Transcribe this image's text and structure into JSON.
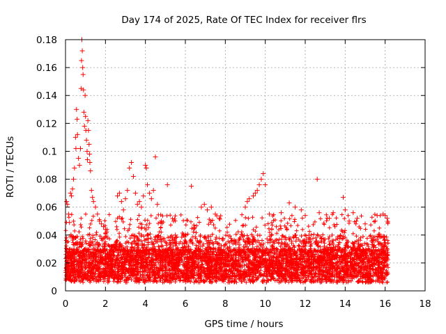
{
  "chart_data": {
    "type": "scatter",
    "title": "Day 174 of 2025, Rate Of TEC Index for receiver flrs",
    "xlabel": "GPS time / hours",
    "ylabel": "ROTI / TECUs",
    "xlim": [
      0,
      18
    ],
    "ylim": [
      0,
      0.18
    ],
    "x_ticks": [
      "0",
      "2",
      "4",
      "6",
      "8",
      "10",
      "12",
      "14",
      "16",
      "18"
    ],
    "y_ticks": [
      "0",
      "0.02",
      "0.04",
      "0.06",
      "0.08",
      "0.1",
      "0.12",
      "0.14",
      "0.16",
      "0.18"
    ],
    "grid": true,
    "marker": "+",
    "color": "#ff0000",
    "series": [
      {
        "name": "ROTI",
        "points": [
          [
            0.05,
            0.064
          ],
          [
            0.1,
            0.062
          ],
          [
            0.15,
            0.055
          ],
          [
            0.2,
            0.049
          ],
          [
            0.25,
            0.07
          ],
          [
            0.3,
            0.068
          ],
          [
            0.35,
            0.073
          ],
          [
            0.4,
            0.08
          ],
          [
            0.45,
            0.088
          ],
          [
            0.5,
            0.11
          ],
          [
            0.52,
            0.102
          ],
          [
            0.55,
            0.13
          ],
          [
            0.58,
            0.123
          ],
          [
            0.6,
            0.112
          ],
          [
            0.65,
            0.095
          ],
          [
            0.7,
            0.09
          ],
          [
            0.75,
            0.102
          ],
          [
            0.78,
            0.145
          ],
          [
            0.8,
            0.165
          ],
          [
            0.82,
            0.18
          ],
          [
            0.84,
            0.172
          ],
          [
            0.86,
            0.16
          ],
          [
            0.88,
            0.155
          ],
          [
            0.9,
            0.144
          ],
          [
            0.92,
            0.128
          ],
          [
            0.95,
            0.118
          ],
          [
            0.98,
            0.14
          ],
          [
            1.0,
            0.125
          ],
          [
            1.02,
            0.115
          ],
          [
            1.05,
            0.108
          ],
          [
            1.08,
            0.1
          ],
          [
            1.1,
            0.094
          ],
          [
            1.12,
            0.122
          ],
          [
            1.15,
            0.115
          ],
          [
            1.18,
            0.105
          ],
          [
            1.2,
            0.098
          ],
          [
            1.22,
            0.092
          ],
          [
            1.25,
            0.086
          ],
          [
            1.3,
            0.072
          ],
          [
            1.35,
            0.067
          ],
          [
            1.4,
            0.064
          ],
          [
            1.5,
            0.06
          ],
          [
            1.6,
            0.055
          ],
          [
            1.7,
            0.05
          ],
          [
            1.8,
            0.048
          ],
          [
            1.9,
            0.046
          ],
          [
            2.0,
            0.044
          ],
          [
            2.6,
            0.068
          ],
          [
            2.7,
            0.07
          ],
          [
            2.8,
            0.064
          ],
          [
            2.9,
            0.058
          ],
          [
            3.0,
            0.066
          ],
          [
            3.1,
            0.072
          ],
          [
            3.2,
            0.088
          ],
          [
            3.3,
            0.092
          ],
          [
            3.4,
            0.082
          ],
          [
            3.5,
            0.07
          ],
          [
            3.6,
            0.062
          ],
          [
            3.7,
            0.064
          ],
          [
            3.8,
            0.06
          ],
          [
            3.9,
            0.068
          ],
          [
            4.0,
            0.09
          ],
          [
            4.05,
            0.088
          ],
          [
            4.1,
            0.076
          ],
          [
            4.2,
            0.07
          ],
          [
            4.3,
            0.066
          ],
          [
            4.4,
            0.072
          ],
          [
            4.5,
            0.096
          ],
          [
            4.6,
            0.062
          ],
          [
            4.8,
            0.05
          ],
          [
            5.1,
            0.076
          ],
          [
            5.5,
            0.04
          ],
          [
            6.0,
            0.04
          ],
          [
            6.3,
            0.075
          ],
          [
            6.8,
            0.06
          ],
          [
            6.95,
            0.062
          ],
          [
            7.1,
            0.058
          ],
          [
            7.3,
            0.06
          ],
          [
            7.5,
            0.055
          ],
          [
            7.7,
            0.052
          ],
          [
            9.0,
            0.06
          ],
          [
            9.1,
            0.064
          ],
          [
            9.2,
            0.066
          ],
          [
            9.4,
            0.068
          ],
          [
            9.5,
            0.07
          ],
          [
            9.6,
            0.072
          ],
          [
            9.7,
            0.076
          ],
          [
            9.8,
            0.08
          ],
          [
            9.9,
            0.084
          ],
          [
            10.0,
            0.076
          ],
          [
            10.2,
            0.055
          ],
          [
            10.8,
            0.056
          ],
          [
            11.2,
            0.063
          ],
          [
            11.5,
            0.06
          ],
          [
            11.8,
            0.058
          ],
          [
            12.0,
            0.054
          ],
          [
            12.6,
            0.08
          ],
          [
            12.7,
            0.056
          ],
          [
            13.2,
            0.052
          ],
          [
            13.4,
            0.056
          ],
          [
            13.9,
            0.067
          ],
          [
            14.0,
            0.058
          ],
          [
            14.2,
            0.05
          ],
          [
            14.4,
            0.056
          ],
          [
            14.6,
            0.052
          ],
          [
            15.0,
            0.048
          ],
          [
            15.5,
            0.05
          ],
          [
            15.6,
            0.054
          ],
          [
            15.9,
            0.055
          ],
          [
            16.0,
            0.054
          ],
          [
            16.1,
            0.052
          ]
        ]
      }
    ]
  }
}
